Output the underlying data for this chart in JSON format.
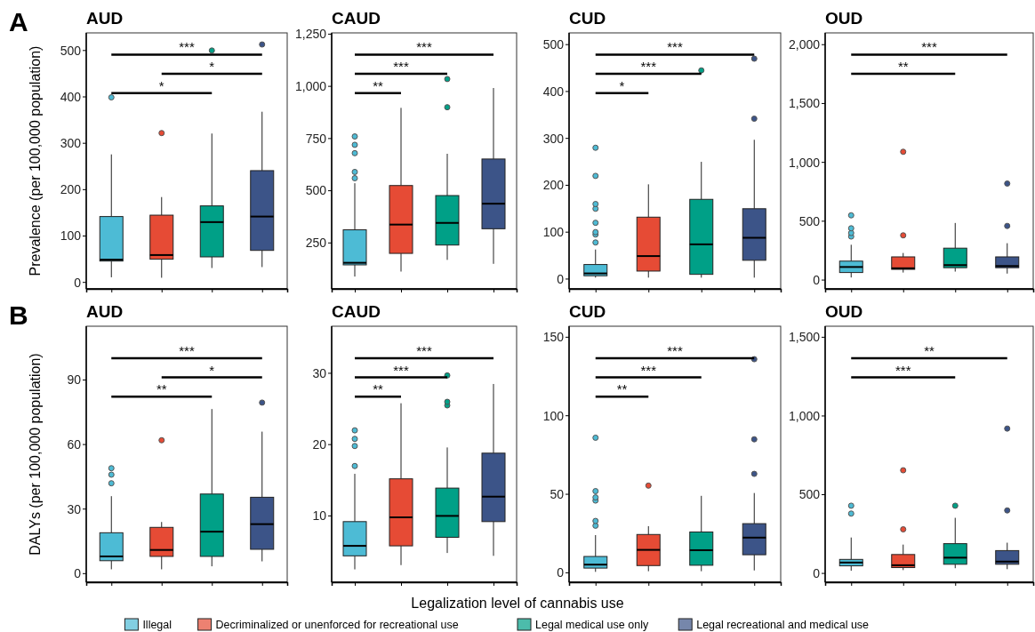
{
  "chart_data": [
    {
      "type": "box",
      "title": "AUD",
      "ylabel": "Prevalence (per 100,000 population)",
      "annotations": [
        "A",
        "***",
        "*",
        "*"
      ],
      "grid": false,
      "legend": false,
      "categories": [
        null,
        null,
        null,
        null
      ],
      "ylim": [
        -14,
        538
      ],
      "yticks": [
        0,
        100,
        200,
        300,
        400,
        500
      ],
      "colors": [
        "#4dbbd5",
        "#e64b35",
        "#00a087",
        "#3c5488"
      ],
      "boxes": [
        {
          "low": 11,
          "q1": 46,
          "median": 49,
          "q3": 142,
          "high": 276,
          "outliers": [
            399
          ]
        },
        {
          "low": 10,
          "q1": 50,
          "median": 59,
          "q3": 145,
          "high": 184,
          "outliers": [
            322
          ]
        },
        {
          "low": 31,
          "q1": 55,
          "median": 130,
          "q3": 165,
          "high": 321,
          "outliers": [
            500
          ]
        },
        {
          "low": 33,
          "q1": 69,
          "median": 142,
          "q3": 241,
          "high": 368,
          "outliers": [
            513
          ]
        }
      ]
    },
    {
      "type": "box",
      "title": "CAUD",
      "annotations": [
        "***",
        "***",
        "**"
      ],
      "grid": false,
      "legend": false,
      "categories": [
        null,
        null,
        null,
        null
      ],
      "ylim": [
        30,
        1256
      ],
      "yticks": [
        250,
        500,
        750,
        {
          "value": 1000,
          "label": "1,000"
        },
        {
          "value": 1250,
          "label": "1,250"
        }
      ],
      "colors": [
        "#4dbbd5",
        "#e64b35",
        "#00a087",
        "#3c5488"
      ],
      "boxes": [
        {
          "low": 89,
          "q1": 145,
          "median": 155,
          "q3": 313,
          "high": 536,
          "outliers": [
            560,
            590,
            680,
            720,
            760
          ]
        },
        {
          "low": 113,
          "q1": 200,
          "median": 338,
          "q3": 525,
          "high": 897
        },
        {
          "low": 169,
          "q1": 240,
          "median": 346,
          "q3": 477,
          "high": 677,
          "outliers": [
            900,
            1035
          ]
        },
        {
          "low": 150,
          "q1": 318,
          "median": 438,
          "q3": 652,
          "high": 992
        }
      ]
    },
    {
      "type": "box",
      "title": "CUD",
      "annotations": [
        "***",
        "***",
        "*"
      ],
      "grid": false,
      "legend": false,
      "categories": [
        null,
        null,
        null,
        null
      ],
      "ylim": [
        -21,
        525
      ],
      "yticks": [
        0,
        100,
        200,
        300,
        400,
        500
      ],
      "colors": [
        "#4dbbd5",
        "#e64b35",
        "#00a087",
        "#3c5488"
      ],
      "boxes": [
        {
          "low": 3,
          "q1": 7,
          "median": 12,
          "q3": 31,
          "high": 63,
          "outliers": [
            78,
            95,
            100,
            120,
            150,
            160,
            220,
            280
          ]
        },
        {
          "low": 3,
          "q1": 17,
          "median": 49,
          "q3": 132,
          "high": 202
        },
        {
          "low": 3,
          "q1": 10,
          "median": 74,
          "q3": 170,
          "high": 250,
          "outliers": [
            445
          ]
        },
        {
          "low": 3,
          "q1": 40,
          "median": 88,
          "q3": 150,
          "high": 297,
          "outliers": [
            342,
            470
          ]
        }
      ]
    },
    {
      "type": "box",
      "title": "OUD",
      "annotations": [
        "***",
        "**"
      ],
      "grid": false,
      "legend": false,
      "categories": [
        null,
        null,
        null,
        null
      ],
      "ylim": [
        -75,
        2100
      ],
      "yticks": [
        0,
        500,
        {
          "value": 1000,
          "label": "1,000"
        },
        {
          "value": 1500,
          "label": "1,500"
        },
        {
          "value": 2000,
          "label": "2,000"
        }
      ],
      "colors": [
        "#4dbbd5",
        "#e64b35",
        "#00a087",
        "#3c5488"
      ],
      "boxes": [
        {
          "low": 22,
          "q1": 64,
          "median": 111,
          "q3": 161,
          "high": 300,
          "outliers": [
            370,
            400,
            440,
            550
          ]
        },
        {
          "low": 64,
          "q1": 91,
          "median": 100,
          "q3": 197,
          "high": 230,
          "outliers": [
            380,
            1090
          ]
        },
        {
          "low": 72,
          "q1": 105,
          "median": 127,
          "q3": 271,
          "high": 485
        },
        {
          "low": 55,
          "q1": 105,
          "median": 119,
          "q3": 197,
          "high": 313,
          "outliers": [
            460,
            820
          ]
        }
      ]
    },
    {
      "type": "box",
      "title": "AUD",
      "ylabel": "DALYs (per 100,000 population)",
      "annotations": [
        "B",
        "***",
        "*",
        "**"
      ],
      "grid": false,
      "legend": false,
      "categories": [
        null,
        null,
        null,
        null
      ],
      "ylim": [
        -4,
        115
      ],
      "yticks": [
        0,
        30,
        60,
        90
      ],
      "colors": [
        "#4dbbd5",
        "#e64b35",
        "#00a087",
        "#3c5488"
      ],
      "boxes": [
        {
          "low": 2,
          "q1": 6,
          "median": 8,
          "q3": 19,
          "high": 36,
          "outliers": [
            42,
            46,
            49
          ]
        },
        {
          "low": 2,
          "q1": 8,
          "median": 11,
          "q3": 21.5,
          "high": 24,
          "outliers": [
            62
          ]
        },
        {
          "low": 3.4,
          "q1": 8,
          "median": 19.5,
          "q3": 37,
          "high": 76.5
        },
        {
          "low": 5.7,
          "q1": 11.3,
          "median": 23,
          "q3": 35.5,
          "high": 66,
          "outliers": [
            79.5
          ]
        }
      ]
    },
    {
      "type": "box",
      "title": "CAUD",
      "annotations": [
        "***",
        "***",
        "**"
      ],
      "grid": false,
      "legend": false,
      "categories": [
        null,
        null,
        null,
        null
      ],
      "ylim": [
        0.7,
        36.6
      ],
      "yticks": [
        10,
        20,
        30
      ],
      "colors": [
        "#4dbbd5",
        "#e64b35",
        "#00a087",
        "#3c5488"
      ],
      "boxes": [
        {
          "low": 2.5,
          "q1": 4.4,
          "median": 5.8,
          "q3": 9.2,
          "high": 15.9,
          "outliers": [
            17,
            19.8,
            20.8,
            22
          ]
        },
        {
          "low": 3.1,
          "q1": 5.8,
          "median": 9.8,
          "q3": 15.2,
          "high": 25.8
        },
        {
          "low": 4.8,
          "q1": 7,
          "median": 10,
          "q3": 13.9,
          "high": 19.6,
          "outliers": [
            25.5,
            26,
            29.7
          ]
        },
        {
          "low": 4.4,
          "q1": 9.2,
          "median": 12.7,
          "q3": 18.8,
          "high": 28.5
        }
      ]
    },
    {
      "type": "box",
      "title": "CUD",
      "annotations": [
        "***",
        "***",
        "**"
      ],
      "grid": false,
      "legend": false,
      "categories": [
        null,
        null,
        null,
        null
      ],
      "ylim": [
        -6,
        157
      ],
      "yticks": [
        0,
        50,
        100,
        150
      ],
      "colors": [
        "#4dbbd5",
        "#e64b35",
        "#00a087",
        "#3c5488"
      ],
      "boxes": [
        {
          "low": 0.6,
          "q1": 3,
          "median": 5.2,
          "q3": 10.4,
          "high": 24,
          "outliers": [
            30,
            33,
            46,
            48,
            52,
            86
          ]
        },
        {
          "low": 1,
          "q1": 4.6,
          "median": 14.6,
          "q3": 24.4,
          "high": 29.7,
          "outliers": [
            55.5
          ]
        },
        {
          "low": 1,
          "q1": 4.8,
          "median": 14.4,
          "q3": 26,
          "high": 49
        },
        {
          "low": 1.5,
          "q1": 11.5,
          "median": 22.4,
          "q3": 31.3,
          "high": 50.8,
          "outliers": [
            63,
            85,
            136
          ]
        }
      ]
    },
    {
      "type": "box",
      "title": "OUD",
      "annotations": [
        "**",
        "***"
      ],
      "grid": false,
      "legend": false,
      "categories": [
        null,
        null,
        null,
        null
      ],
      "ylim": [
        -56,
        1570
      ],
      "yticks": [
        0,
        500,
        {
          "value": 1000,
          "label": "1,000"
        },
        {
          "value": 1500,
          "label": "1,500"
        }
      ],
      "colors": [
        "#4dbbd5",
        "#e64b35",
        "#00a087",
        "#3c5488"
      ],
      "boxes": [
        {
          "low": 17,
          "q1": 48,
          "median": 69,
          "q3": 89,
          "high": 228,
          "outliers": [
            380,
            430
          ]
        },
        {
          "low": 21,
          "q1": 37,
          "median": 52,
          "q3": 120,
          "high": 183,
          "outliers": [
            280,
            655
          ]
        },
        {
          "low": 33,
          "q1": 58,
          "median": 100,
          "q3": 189,
          "high": 353,
          "outliers": [
            430
          ]
        },
        {
          "low": 27,
          "q1": 58,
          "median": 75,
          "q3": 145,
          "high": 195,
          "outliers": [
            400,
            920
          ]
        }
      ]
    },
    {
      "type": "other",
      "xlabel": "Legalization level of cannabis use",
      "legend": "bottom",
      "series": [
        {
          "name": "Illegal",
          "color": "#4dbbd5"
        },
        {
          "name": "Decriminalized or unenforced for recreational use",
          "color": "#e64b35"
        },
        {
          "name": "Legal medical use only",
          "color": "#00a087"
        },
        {
          "name": "Legal recreational and medical use",
          "color": "#3c5488"
        }
      ]
    }
  ]
}
